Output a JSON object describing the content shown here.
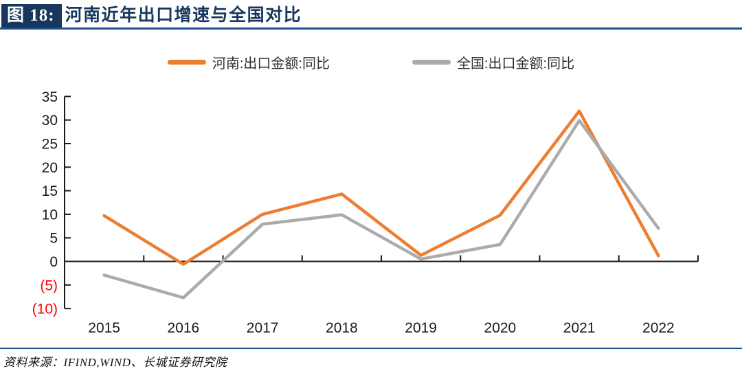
{
  "header": {
    "figure_label": "图 18:",
    "title": "河南近年出口增速与全国对比"
  },
  "chart_data": {
    "type": "line",
    "title": "河南近年出口增速与全国对比",
    "categories": [
      "2015",
      "2016",
      "2017",
      "2018",
      "2019",
      "2020",
      "2021",
      "2022"
    ],
    "series": [
      {
        "slug": "henan",
        "name": "河南:出口金额:同比",
        "color": "#ED7D31",
        "values": [
          9.7,
          -0.6,
          10.0,
          14.3,
          1.3,
          9.8,
          31.9,
          1.2
        ]
      },
      {
        "slug": "national",
        "name": "全国:出口金额:同比",
        "color": "#ABABAB",
        "values": [
          -2.9,
          -7.7,
          7.9,
          9.9,
          0.5,
          3.6,
          29.9,
          7.0
        ]
      }
    ],
    "xlabel": "",
    "ylabel": "",
    "ylim": [
      -10,
      35
    ],
    "ytick_step": 5,
    "negative_label_style": "parentheses",
    "negative_label_color": "#FF0000",
    "axis_color": "#1a1a1a",
    "tick_label_color": "#1a1a1a",
    "legend_position": "top",
    "grid": false
  },
  "footer": {
    "source": "资料来源：IFIND,WIND、长城证券研究院"
  },
  "colors": {
    "badge_navy": "#17375E",
    "rule_blue": "#1F4E8F",
    "henan_orange": "#ED7D31",
    "national_gray": "#ABABAB",
    "negative_red": "#FF0000"
  }
}
